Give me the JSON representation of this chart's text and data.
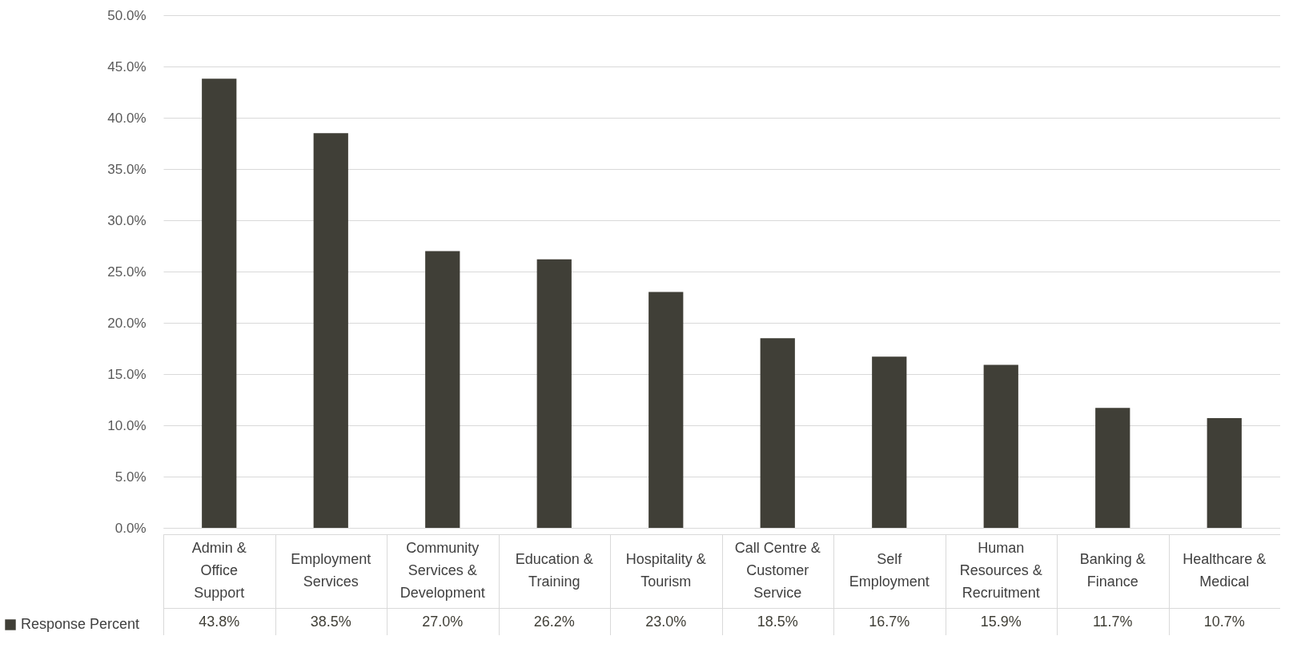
{
  "chart_data": {
    "type": "bar",
    "categories": [
      "Admin & Office Support",
      "Employment Services",
      "Community Services & Development",
      "Education & Training",
      "Hospitality & Tourism",
      "Call Centre & Customer Service",
      "Self Employment",
      "Human Resources & Recruitment",
      "Banking & Finance",
      "Healthcare & Medical"
    ],
    "series": [
      {
        "name": "Response Percent",
        "color": "#403f37",
        "values": [
          43.8,
          38.5,
          27.0,
          26.2,
          23.0,
          18.5,
          16.7,
          15.9,
          11.7,
          10.7
        ],
        "value_labels": [
          "43.8%",
          "38.5%",
          "27.0%",
          "26.2%",
          "23.0%",
          "18.5%",
          "16.7%",
          "15.9%",
          "11.7%",
          "10.7%"
        ]
      }
    ],
    "ylim": [
      0,
      50
    ],
    "yticks": [
      {
        "value": 0,
        "label": "0.0%"
      },
      {
        "value": 5,
        "label": "5.0%"
      },
      {
        "value": 10,
        "label": "10.0%"
      },
      {
        "value": 15,
        "label": "15.0%"
      },
      {
        "value": 20,
        "label": "20.0%"
      },
      {
        "value": 25,
        "label": "25.0%"
      },
      {
        "value": 30,
        "label": "30.0%"
      },
      {
        "value": 35,
        "label": "35.0%"
      },
      {
        "value": 40,
        "label": "40.0%"
      },
      {
        "value": 45,
        "label": "45.0%"
      },
      {
        "value": 50,
        "label": "50.0%"
      }
    ],
    "grid": "y",
    "legend": "bottom left"
  }
}
